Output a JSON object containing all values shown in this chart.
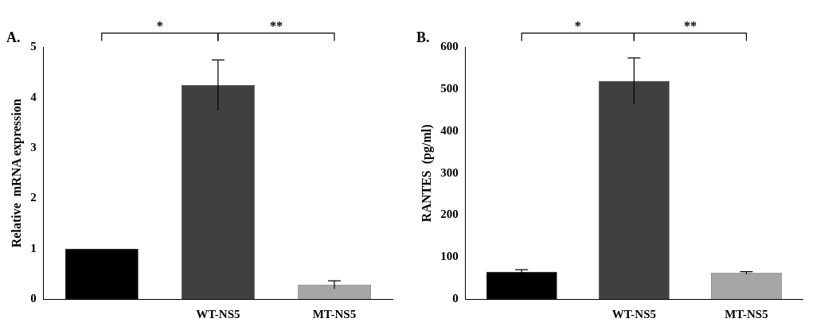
{
  "chart_data": [
    {
      "type": "bar",
      "title": "A.",
      "ylabel": "Relative  mRNA expression",
      "categories": [
        null,
        "WT-NS5",
        "MT-NS5"
      ],
      "values": [
        1.0,
        4.25,
        0.28
      ],
      "errors": [
        null,
        0.5,
        0.08
      ],
      "colors": [
        "#000000",
        "#404040",
        "#a6a6a6"
      ],
      "ylim": [
        0,
        5
      ],
      "yticks": [
        0,
        1,
        2,
        3,
        4,
        5
      ],
      "grid": false,
      "annotations": [
        "*",
        "**"
      ]
    },
    {
      "type": "bar",
      "title": "B.",
      "ylabel": "RANTES  (pg/ml)",
      "categories": [
        null,
        "WT-NS5",
        "MT-NS5"
      ],
      "values": [
        65,
        520,
        62
      ],
      "errors": [
        5,
        55,
        3
      ],
      "colors": [
        "#000000",
        "#404040",
        "#a6a6a6"
      ],
      "ylim": [
        0,
        600
      ],
      "yticks": [
        0,
        100,
        200,
        300,
        400,
        500,
        600
      ],
      "grid": false,
      "annotations": [
        "*",
        "**"
      ]
    }
  ]
}
